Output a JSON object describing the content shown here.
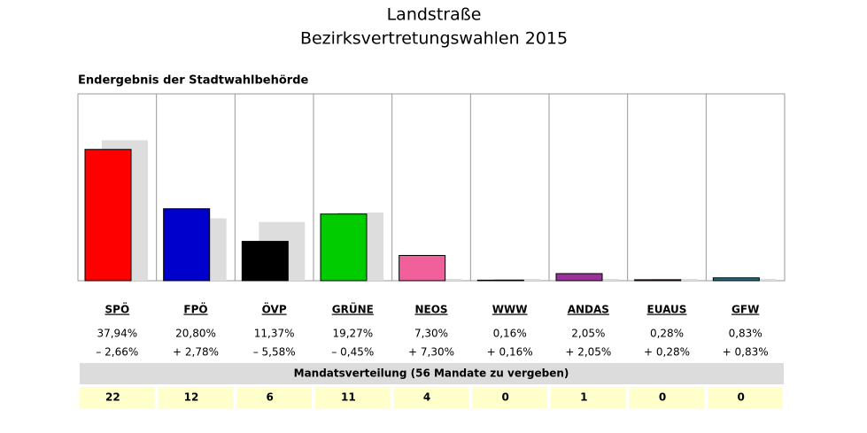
{
  "chart_data": {
    "type": "bar",
    "title": "Landstraße",
    "subtitle": "Bezirksvertretungswahlen 2015",
    "heading": "Endergebnis der Stadtwahlbehörde",
    "categories": [
      "SPÖ",
      "FPÖ",
      "ÖVP",
      "GRÜNE",
      "NEOS",
      "WWW",
      "ANDAS",
      "EUAUS",
      "GFW"
    ],
    "values": [
      37.94,
      20.8,
      11.37,
      19.27,
      7.3,
      0.16,
      2.05,
      0.28,
      0.83
    ],
    "value_labels": [
      "37,94%",
      "20,80%",
      "11,37%",
      "19,27%",
      "7,30%",
      "0,16%",
      "2,05%",
      "0,28%",
      "0,83%"
    ],
    "colors": [
      "#ff0000",
      "#0000cc",
      "#000000",
      "#00cc00",
      "#f0609a",
      "#ffffff",
      "#993399",
      "#993399",
      "#1f6e80"
    ],
    "previous_values": [
      40.6,
      18.02,
      16.95,
      19.72,
      0,
      0,
      0,
      0,
      0
    ],
    "previous_color": "#dddddd",
    "changes": [
      -2.66,
      2.78,
      -5.58,
      -0.45,
      7.3,
      0.16,
      2.05,
      0.28,
      0.83
    ],
    "change_labels": [
      "– 2,66%",
      "+ 2,78%",
      "– 5,58%",
      "– 0,45%",
      "+ 7,30%",
      "+ 0,16%",
      "+ 2,05%",
      "+ 0,28%",
      "+ 0,83%"
    ],
    "mandates_title": "Mandatsverteilung (56 Mandate zu vergeben)",
    "mandates": [
      22,
      12,
      6,
      11,
      4,
      0,
      1,
      0,
      0
    ],
    "ylim": [
      0,
      54
    ]
  }
}
